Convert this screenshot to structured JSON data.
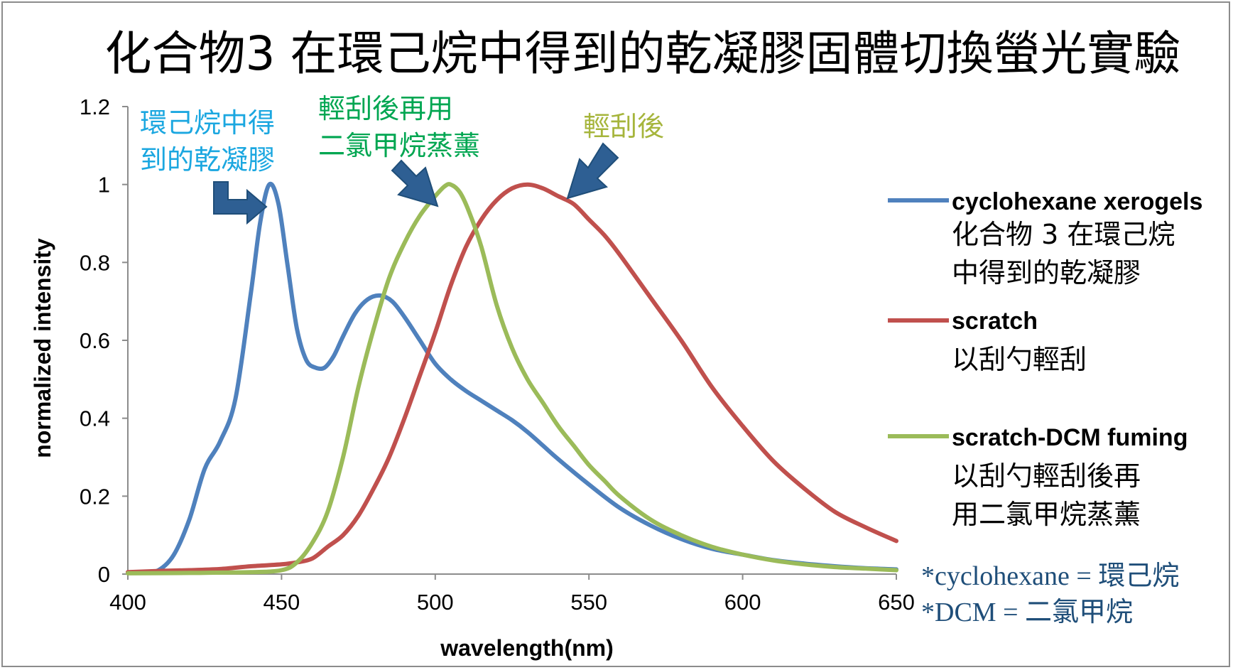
{
  "chart_data": {
    "type": "line",
    "title": "化合物3 在環己烷中得到的乾凝膠固體切換螢光實驗",
    "xlabel": "wavelength(nm)",
    "ylabel": "normalized intensity",
    "xlim": [
      400,
      650
    ],
    "ylim": [
      0,
      1.2
    ],
    "xticks": [
      "400",
      "450",
      "500",
      "550",
      "600",
      "650"
    ],
    "yticks": [
      "0",
      "0.2",
      "0.4",
      "0.6",
      "0.8",
      "1",
      "1.2"
    ],
    "grid": false,
    "legend_position": "right",
    "series": [
      {
        "name": "cyclohexane xerogels",
        "name_zh": [
          "化合物 3 在環己烷",
          "中得到的乾凝膠"
        ],
        "color": "#4f81bd",
        "x": [
          400,
          405,
          410,
          415,
          420,
          425,
          430,
          435,
          440,
          443,
          446,
          449,
          452,
          455,
          458,
          461,
          464,
          467,
          470,
          474,
          478,
          482,
          486,
          490,
          495,
          500,
          505,
          510,
          515,
          520,
          525,
          530,
          535,
          540,
          550,
          560,
          570,
          580,
          590,
          600,
          610,
          620,
          630,
          640,
          650
        ],
        "y": [
          0.003,
          0.004,
          0.01,
          0.05,
          0.14,
          0.27,
          0.34,
          0.45,
          0.72,
          0.9,
          1.0,
          0.95,
          0.79,
          0.63,
          0.55,
          0.53,
          0.53,
          0.56,
          0.61,
          0.67,
          0.705,
          0.715,
          0.7,
          0.66,
          0.6,
          0.54,
          0.5,
          0.47,
          0.445,
          0.42,
          0.395,
          0.365,
          0.33,
          0.295,
          0.23,
          0.17,
          0.125,
          0.09,
          0.065,
          0.05,
          0.036,
          0.027,
          0.02,
          0.015,
          0.012
        ]
      },
      {
        "name": "scratch",
        "name_zh": [
          "以刮勺輕刮"
        ],
        "color": "#c0504d",
        "x": [
          400,
          410,
          420,
          430,
          440,
          450,
          455,
          460,
          465,
          470,
          475,
          480,
          485,
          490,
          495,
          500,
          505,
          510,
          515,
          520,
          525,
          530,
          535,
          540,
          545,
          550,
          555,
          560,
          570,
          580,
          590,
          600,
          610,
          620,
          630,
          640,
          650
        ],
        "y": [
          0.005,
          0.008,
          0.01,
          0.013,
          0.02,
          0.025,
          0.03,
          0.04,
          0.07,
          0.1,
          0.15,
          0.22,
          0.3,
          0.4,
          0.51,
          0.62,
          0.74,
          0.84,
          0.91,
          0.96,
          0.99,
          1.0,
          0.99,
          0.97,
          0.95,
          0.91,
          0.87,
          0.82,
          0.71,
          0.6,
          0.48,
          0.38,
          0.29,
          0.22,
          0.16,
          0.12,
          0.085
        ]
      },
      {
        "name": "scratch-DCM fuming",
        "name_zh": [
          "以刮勺輕刮後再",
          "用二氯甲烷蒸薰"
        ],
        "color": "#9bbb59",
        "x": [
          400,
          420,
          440,
          450,
          455,
          460,
          465,
          470,
          475,
          480,
          485,
          490,
          495,
          500,
          503,
          505,
          508,
          511,
          515,
          520,
          525,
          530,
          535,
          540,
          545,
          550,
          555,
          560,
          570,
          580,
          590,
          600,
          610,
          620,
          630,
          640,
          650
        ],
        "y": [
          0.002,
          0.003,
          0.005,
          0.01,
          0.03,
          0.08,
          0.16,
          0.3,
          0.48,
          0.63,
          0.76,
          0.85,
          0.92,
          0.97,
          0.995,
          1.0,
          0.98,
          0.93,
          0.84,
          0.69,
          0.58,
          0.5,
          0.44,
          0.38,
          0.33,
          0.28,
          0.24,
          0.2,
          0.14,
          0.1,
          0.07,
          0.05,
          0.035,
          0.025,
          0.018,
          0.014,
          0.01
        ]
      }
    ],
    "annotations": [
      {
        "id": "ann-blue",
        "lines": [
          "環己烷中得",
          "到的乾凝膠"
        ],
        "color": "#1ba7e0"
      },
      {
        "id": "ann-green",
        "lines": [
          "輕刮後再用",
          "二氯甲烷蒸薰"
        ],
        "color": "#00a651"
      },
      {
        "id": "ann-olive",
        "lines": [
          "輕刮後"
        ],
        "color": "#a6b53c"
      }
    ],
    "notes": [
      "*cyclohexane = 環己烷",
      "*DCM = 二氯甲烷"
    ]
  },
  "colors": {
    "arrow": "#2e5f93",
    "note": "#1f4e79",
    "axis": "#8c8c8c"
  }
}
